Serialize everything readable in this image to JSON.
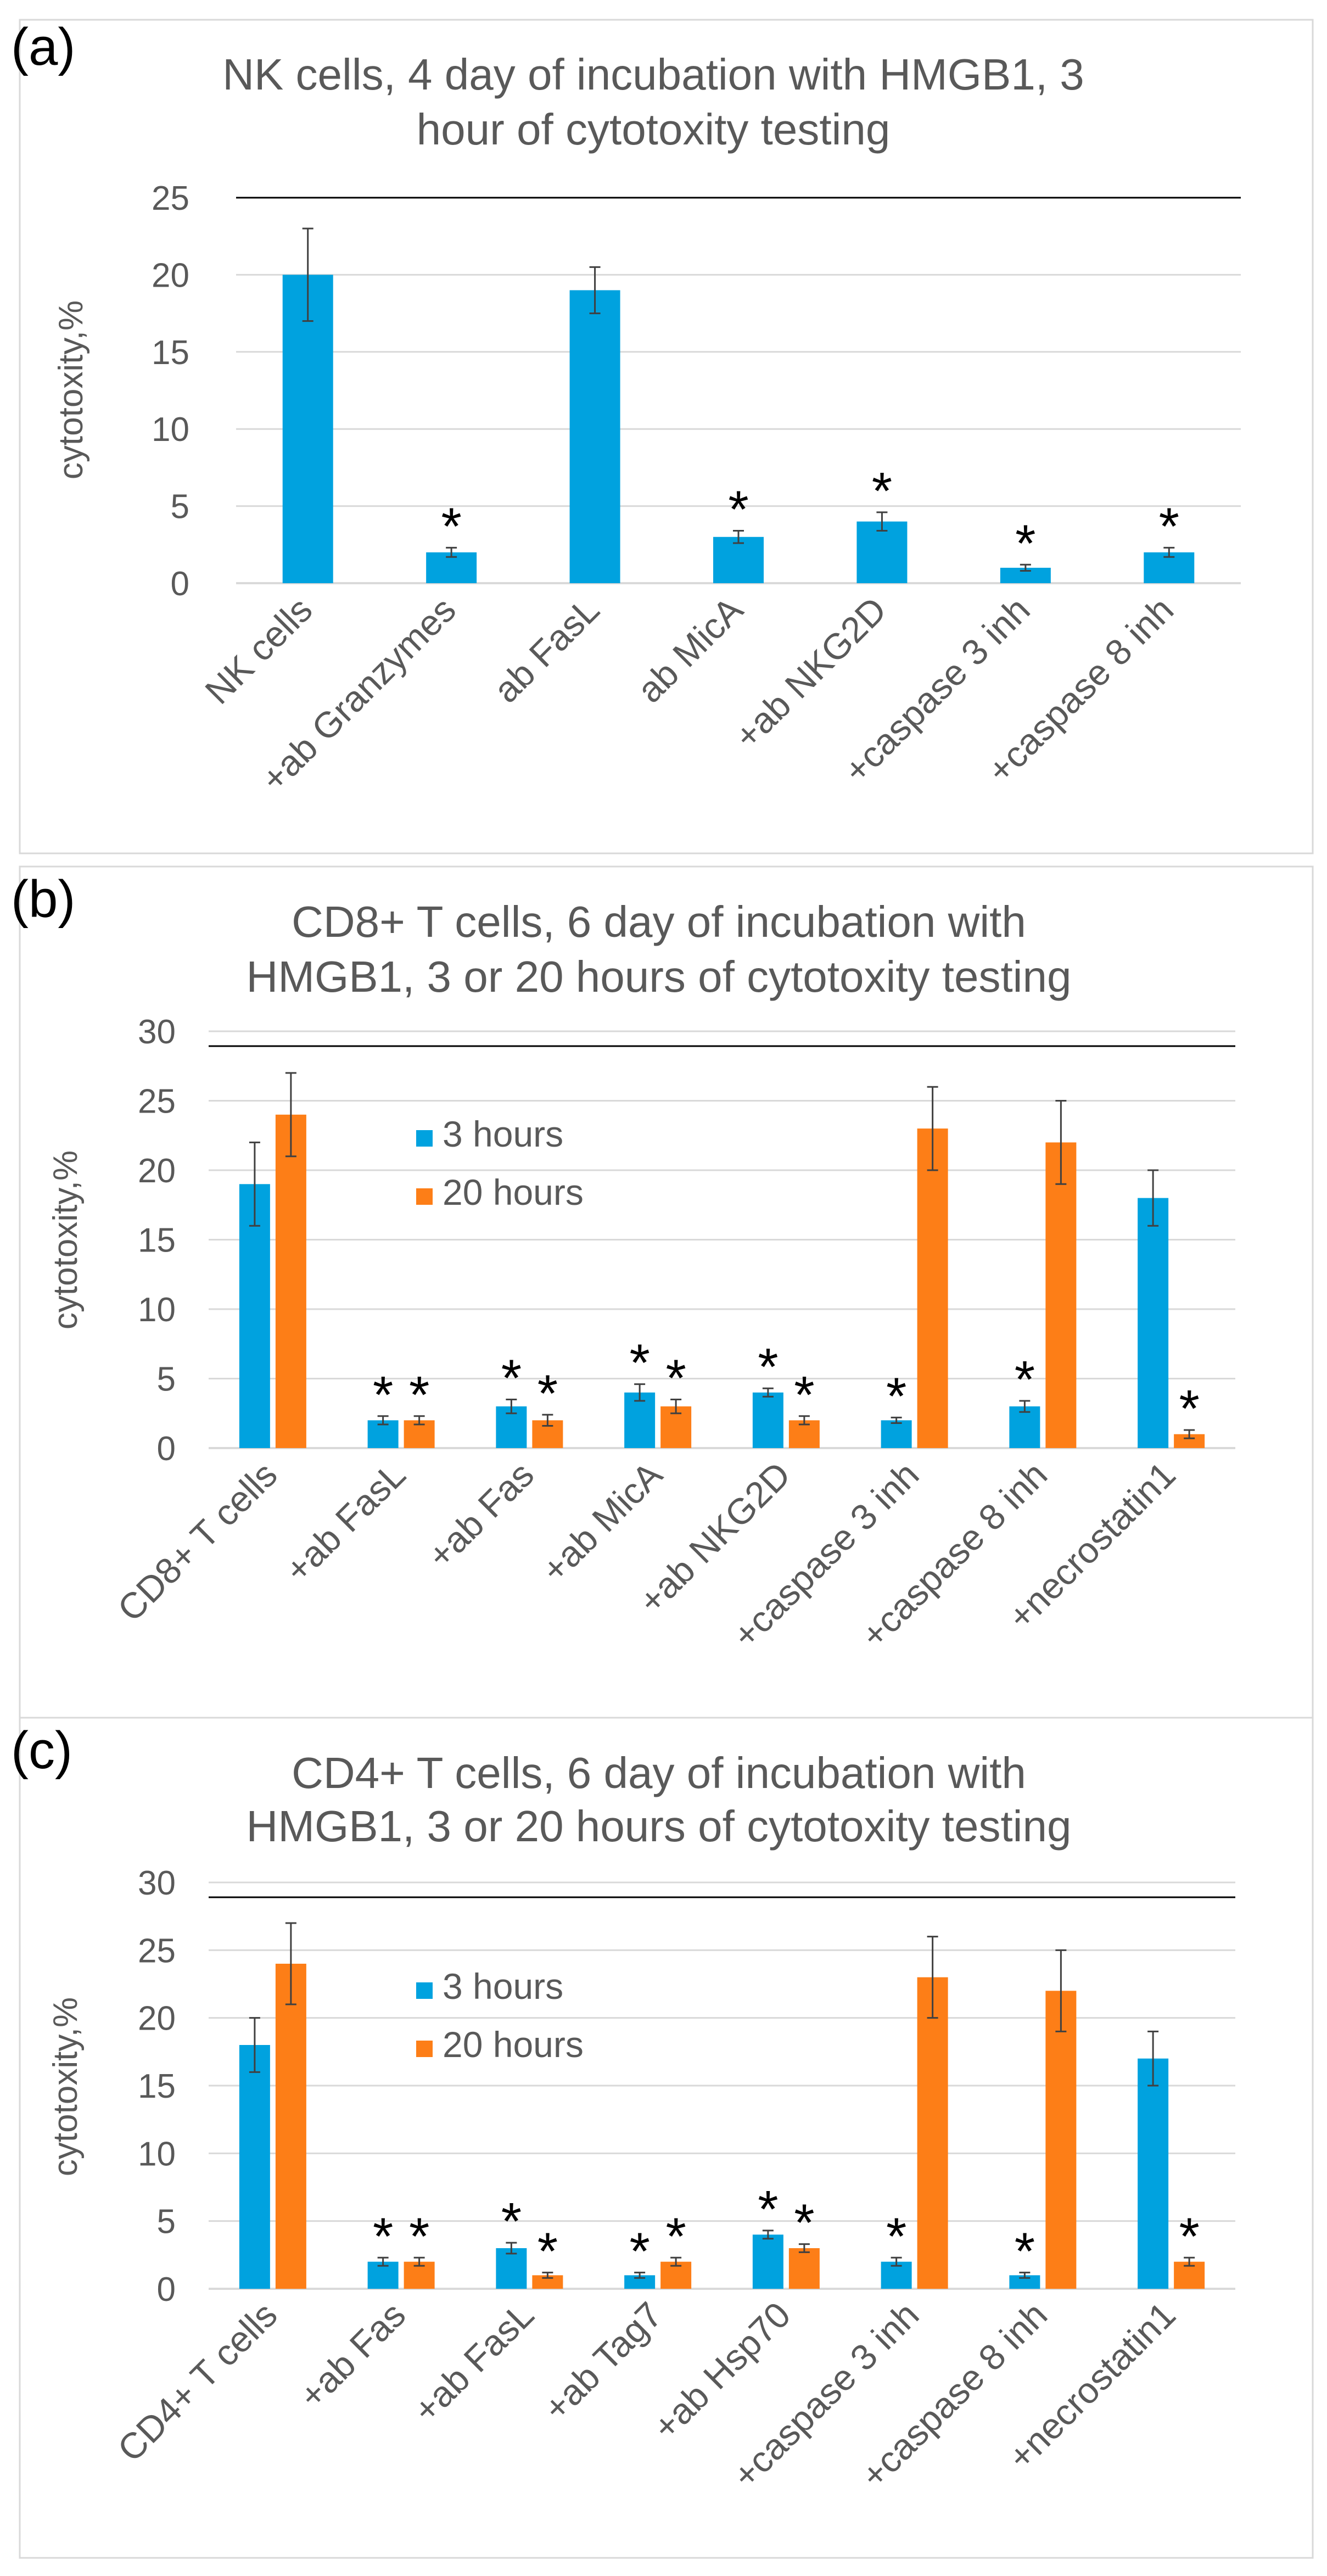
{
  "colors": {
    "blue": "#00a2df",
    "orange": "#fd7e17",
    "grid": "#d9d9d9",
    "text": "#595959",
    "frame": "#d9d9d9",
    "axis": "#d9d9d9",
    "errbar": "#404040",
    "sigline": "#000000"
  },
  "chart_data": [
    {
      "panel_label": "(a)",
      "type": "bar",
      "title_lines": [
        "NK cells, 4 day of incubation with HMGB1, 3",
        "hour of cytotoxity testing"
      ],
      "ylabel": "cytotoxity,%",
      "ylim": [
        0,
        25
      ],
      "yticks": [
        0,
        5,
        10,
        15,
        20,
        25
      ],
      "categories": [
        "NK cells",
        "+ab Granzymes",
        "ab FasL",
        "ab MicA",
        "+ab NKG2D",
        "+caspase 3 inh",
        "+caspase 8 inh"
      ],
      "series": [
        {
          "name": "",
          "color_key": "blue",
          "values": [
            20,
            2,
            19,
            3,
            4,
            1,
            2
          ],
          "errors": [
            3,
            0.3,
            1.5,
            0.4,
            0.6,
            0.2,
            0.3
          ],
          "stars": [
            false,
            true,
            false,
            true,
            true,
            true,
            true
          ]
        }
      ],
      "legend": [],
      "star_label": "*"
    },
    {
      "panel_label": "(b)",
      "type": "bar",
      "title_lines": [
        "CD8+ T cells, 6 day of incubation with",
        "HMGB1, 3 or 20 hours of cytotoxity testing"
      ],
      "ylabel": "cytotoxity,%",
      "ylim": [
        0,
        30
      ],
      "yticks": [
        0,
        5,
        10,
        15,
        20,
        25,
        30
      ],
      "categories": [
        "CD8+ T cells",
        "+ab FasL",
        "+ab Fas",
        "+ab MicA",
        "+ab NKG2D",
        "+caspase 3 inh",
        "+caspase 8 inh",
        "+necrostatin1"
      ],
      "series": [
        {
          "name": "3 hours",
          "color_key": "blue",
          "values": [
            19,
            2,
            3,
            4,
            4,
            2,
            3,
            18
          ],
          "errors": [
            3,
            0.3,
            0.5,
            0.6,
            0.3,
            0.2,
            0.4,
            2
          ],
          "stars": [
            false,
            true,
            true,
            true,
            true,
            true,
            true,
            false
          ]
        },
        {
          "name": "20 hours",
          "color_key": "orange",
          "values": [
            24,
            2,
            2,
            3,
            2,
            23,
            22,
            1
          ],
          "errors": [
            3,
            0.3,
            0.4,
            0.5,
            0.3,
            3,
            3,
            0.3
          ],
          "stars": [
            false,
            true,
            true,
            true,
            true,
            false,
            false,
            true
          ]
        }
      ],
      "legend": [
        "3 hours",
        "20 hours"
      ],
      "star_label": "*"
    },
    {
      "panel_label": "(c)",
      "type": "bar",
      "title_lines": [
        "CD4+ T cells, 6 day of incubation with",
        "HMGB1, 3 or 20 hours of cytotoxity testing"
      ],
      "ylabel": "cytotoxity,%",
      "ylim": [
        0,
        30
      ],
      "yticks": [
        0,
        5,
        10,
        15,
        20,
        25,
        30
      ],
      "categories": [
        "CD4+ T cells",
        "+ab Fas",
        "+ab FasL",
        "+ab Tag7",
        "+ab Hsp70",
        "+caspase 3 inh",
        "+caspase 8 inh",
        "+necrostatin1"
      ],
      "series": [
        {
          "name": "3 hours",
          "color_key": "blue",
          "values": [
            18,
            2,
            3,
            1,
            4,
            2,
            1,
            17
          ],
          "errors": [
            2,
            0.3,
            0.4,
            0.2,
            0.3,
            0.3,
            0.2,
            2
          ],
          "stars": [
            false,
            true,
            true,
            true,
            true,
            true,
            true,
            false
          ]
        },
        {
          "name": "20 hours",
          "color_key": "orange",
          "values": [
            24,
            2,
            1,
            2,
            3,
            23,
            22,
            2
          ],
          "errors": [
            3,
            0.3,
            0.2,
            0.3,
            0.3,
            3,
            3,
            0.3
          ],
          "stars": [
            false,
            true,
            true,
            true,
            true,
            false,
            false,
            true
          ]
        }
      ],
      "legend": [
        "3 hours",
        "20 hours"
      ],
      "star_label": "*"
    }
  ]
}
